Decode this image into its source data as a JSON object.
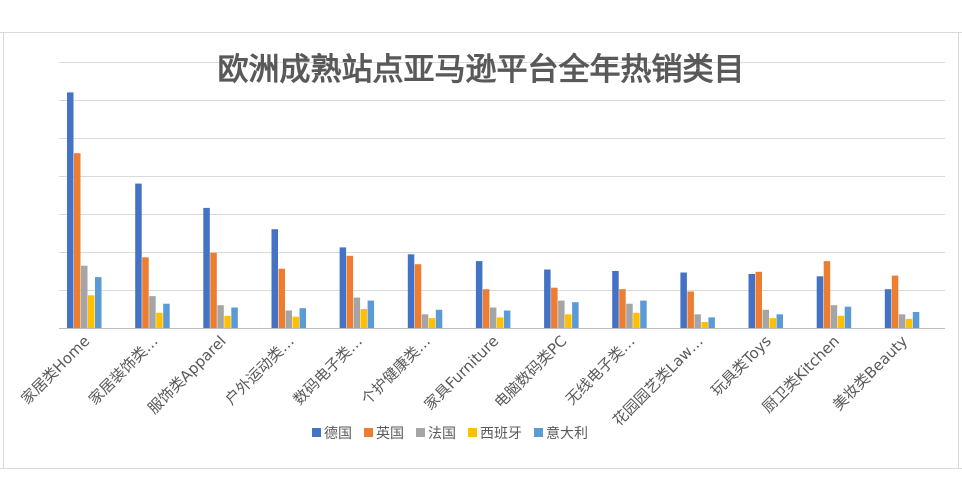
{
  "chart_data": {
    "type": "bar",
    "title": "欧洲成熟站点亚马逊平台全年热销类目",
    "xlabel": "",
    "ylabel": "",
    "ylim": [
      0,
      35
    ],
    "grid": true,
    "legend_position": "bottom",
    "categories": [
      "家居类Home",
      "家居装饰类…",
      "服饰类Apparel",
      "户外运动类…",
      "数码电子类…",
      "个护健康类…",
      "家具Furniture",
      "电脑数码类PC",
      "无线电子类…",
      "花园园艺类Law…",
      "玩具类Toys",
      "厨卫类Kitchen",
      "美妆类Beauty"
    ],
    "series": [
      {
        "name": "德国",
        "color": "#4472C4",
        "values": [
          31,
          19,
          15.8,
          13,
          10.6,
          9.7,
          8.8,
          7.7,
          7.5,
          7.3,
          7.1,
          6.8,
          5.1
        ]
      },
      {
        "name": "英国",
        "color": "#ED7D31",
        "values": [
          23,
          9.3,
          9.9,
          7.8,
          9.5,
          8.4,
          5.1,
          5.3,
          5.1,
          4.8,
          7.4,
          8.8,
          6.9
        ]
      },
      {
        "name": "法国",
        "color": "#A5A5A5",
        "values": [
          8.2,
          4.2,
          3,
          2.3,
          4,
          1.8,
          2.7,
          3.6,
          3.2,
          1.8,
          2.4,
          3,
          1.8
        ]
      },
      {
        "name": "西班牙",
        "color": "#FFC000",
        "values": [
          4.3,
          2,
          1.6,
          1.5,
          2.5,
          1.3,
          1.4,
          1.8,
          2,
          0.8,
          1.3,
          1.6,
          1.2
        ]
      },
      {
        "name": "意大利",
        "color": "#5B9BD5",
        "values": [
          6.7,
          3.2,
          2.7,
          2.6,
          3.6,
          2.4,
          2.3,
          3.4,
          3.6,
          1.4,
          1.8,
          2.8,
          2.1
        ]
      }
    ]
  }
}
